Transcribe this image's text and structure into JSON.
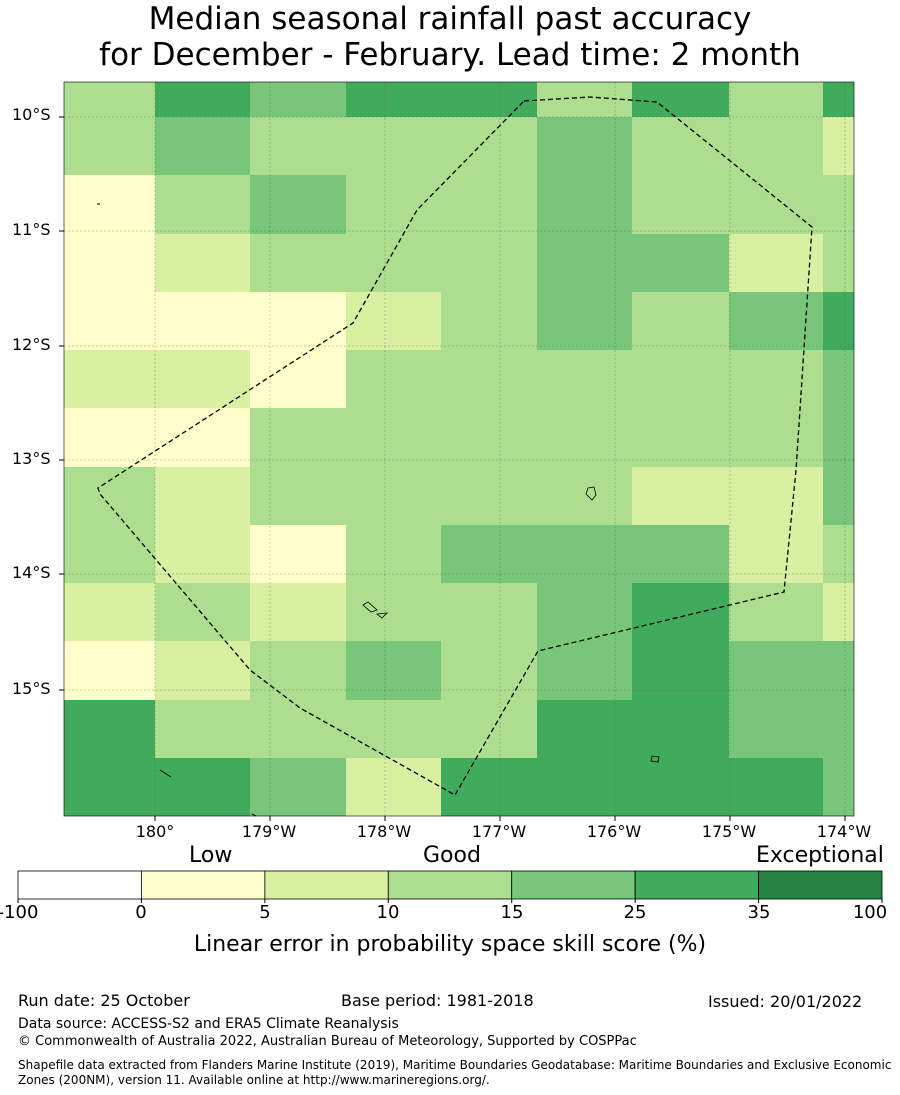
{
  "title": {
    "line1": "Median seasonal rainfall past accuracy",
    "line2": "for December - February. Lead time: 2 month"
  },
  "map": {
    "lat_labels": [
      "10°S",
      "11°S",
      "12°S",
      "13°S",
      "14°S",
      "15°S"
    ],
    "lon_labels": [
      "180°",
      "179°W",
      "178°W",
      "177°W",
      "176°W",
      "175°W",
      "174°W"
    ],
    "grid": [
      [
        3,
        5,
        4,
        5,
        5,
        3,
        5,
        3,
        5
      ],
      [
        3,
        4,
        3,
        3,
        3,
        4,
        3,
        3,
        2
      ],
      [
        1,
        3,
        4,
        3,
        3,
        4,
        3,
        3,
        3
      ],
      [
        1,
        2,
        3,
        3,
        3,
        4,
        4,
        2,
        3
      ],
      [
        1,
        1,
        1,
        2,
        3,
        4,
        3,
        4,
        5
      ],
      [
        2,
        2,
        1,
        3,
        3,
        3,
        3,
        3,
        4
      ],
      [
        1,
        1,
        3,
        3,
        3,
        3,
        3,
        3,
        4
      ],
      [
        3,
        2,
        3,
        3,
        3,
        3,
        2,
        2,
        4
      ],
      [
        3,
        2,
        1,
        3,
        4,
        4,
        4,
        2,
        3
      ],
      [
        2,
        3,
        2,
        3,
        3,
        4,
        5,
        3,
        2
      ],
      [
        1,
        2,
        3,
        4,
        3,
        4,
        5,
        4,
        4
      ],
      [
        5,
        3,
        3,
        3,
        3,
        5,
        5,
        4,
        4
      ],
      [
        5,
        5,
        4,
        2,
        5,
        5,
        5,
        5,
        4
      ]
    ]
  },
  "colorbar": {
    "words": {
      "low": "Low",
      "good": "Good",
      "exceptional": "Exceptional"
    },
    "ticks": [
      "-100",
      "0",
      "5",
      "10",
      "15",
      "25",
      "35",
      "100"
    ],
    "colors": [
      "#ffffff",
      "#ffffcc",
      "#d9f0a3",
      "#addd8e",
      "#78c679",
      "#41ab5d",
      "#238443"
    ],
    "title": "Linear error in probability space skill score (%)"
  },
  "footer": {
    "run_date": "Run date: 25 October",
    "base_period": "Base period: 1981-2018",
    "issued": "Issued: 20/01/2022",
    "data_source": "Data source: ACCESS-S2 and ERA5 Climate Reanalysis",
    "copyright": "© Commonwealth of Australia 2022, Australian Bureau of Meteorology, Supported by COSPPac",
    "shapefile_1": "Shapefile data extracted from Flanders Marine Institute (2019), Maritime Boundaries Geodatabase: Maritime Boundaries and Exclusive Economic",
    "shapefile_2": "Zones (200NM), version 11. Available online at http://www.marineregions.org/."
  }
}
